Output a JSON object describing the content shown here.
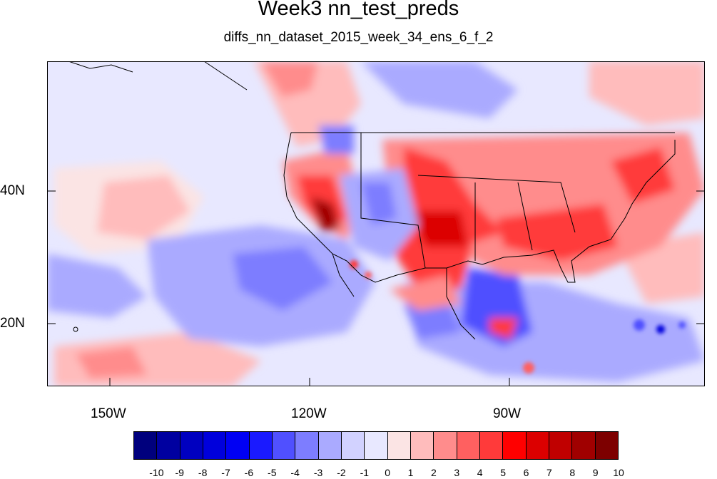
{
  "title": "Week3 nn_test_preds",
  "subtitle": "diffs_nn_dataset_2015_week_34_ens_6_f_2",
  "map": {
    "lon_labels": [
      "150W",
      "120W",
      "90W"
    ],
    "lat_labels": [
      "40N",
      "20N"
    ]
  },
  "colorbar": {
    "labels": [
      "-10",
      "-9",
      "-8",
      "-7",
      "-6",
      "-5",
      "-4",
      "-3",
      "-2",
      "-1",
      "0",
      "1",
      "2",
      "3",
      "4",
      "5",
      "6",
      "7",
      "8",
      "9",
      "10"
    ],
    "colors": [
      "#00007d",
      "#0000a0",
      "#0000c0",
      "#0000dc",
      "#0000f4",
      "#1a1aff",
      "#5050ff",
      "#7d7dff",
      "#aaaaff",
      "#d2d2ff",
      "#e8e8ff",
      "#fbe4e4",
      "#ffbcbc",
      "#ff8c8c",
      "#ff6060",
      "#ff3a3a",
      "#ff0000",
      "#dc0000",
      "#c00000",
      "#a00000",
      "#7d0000"
    ]
  }
}
